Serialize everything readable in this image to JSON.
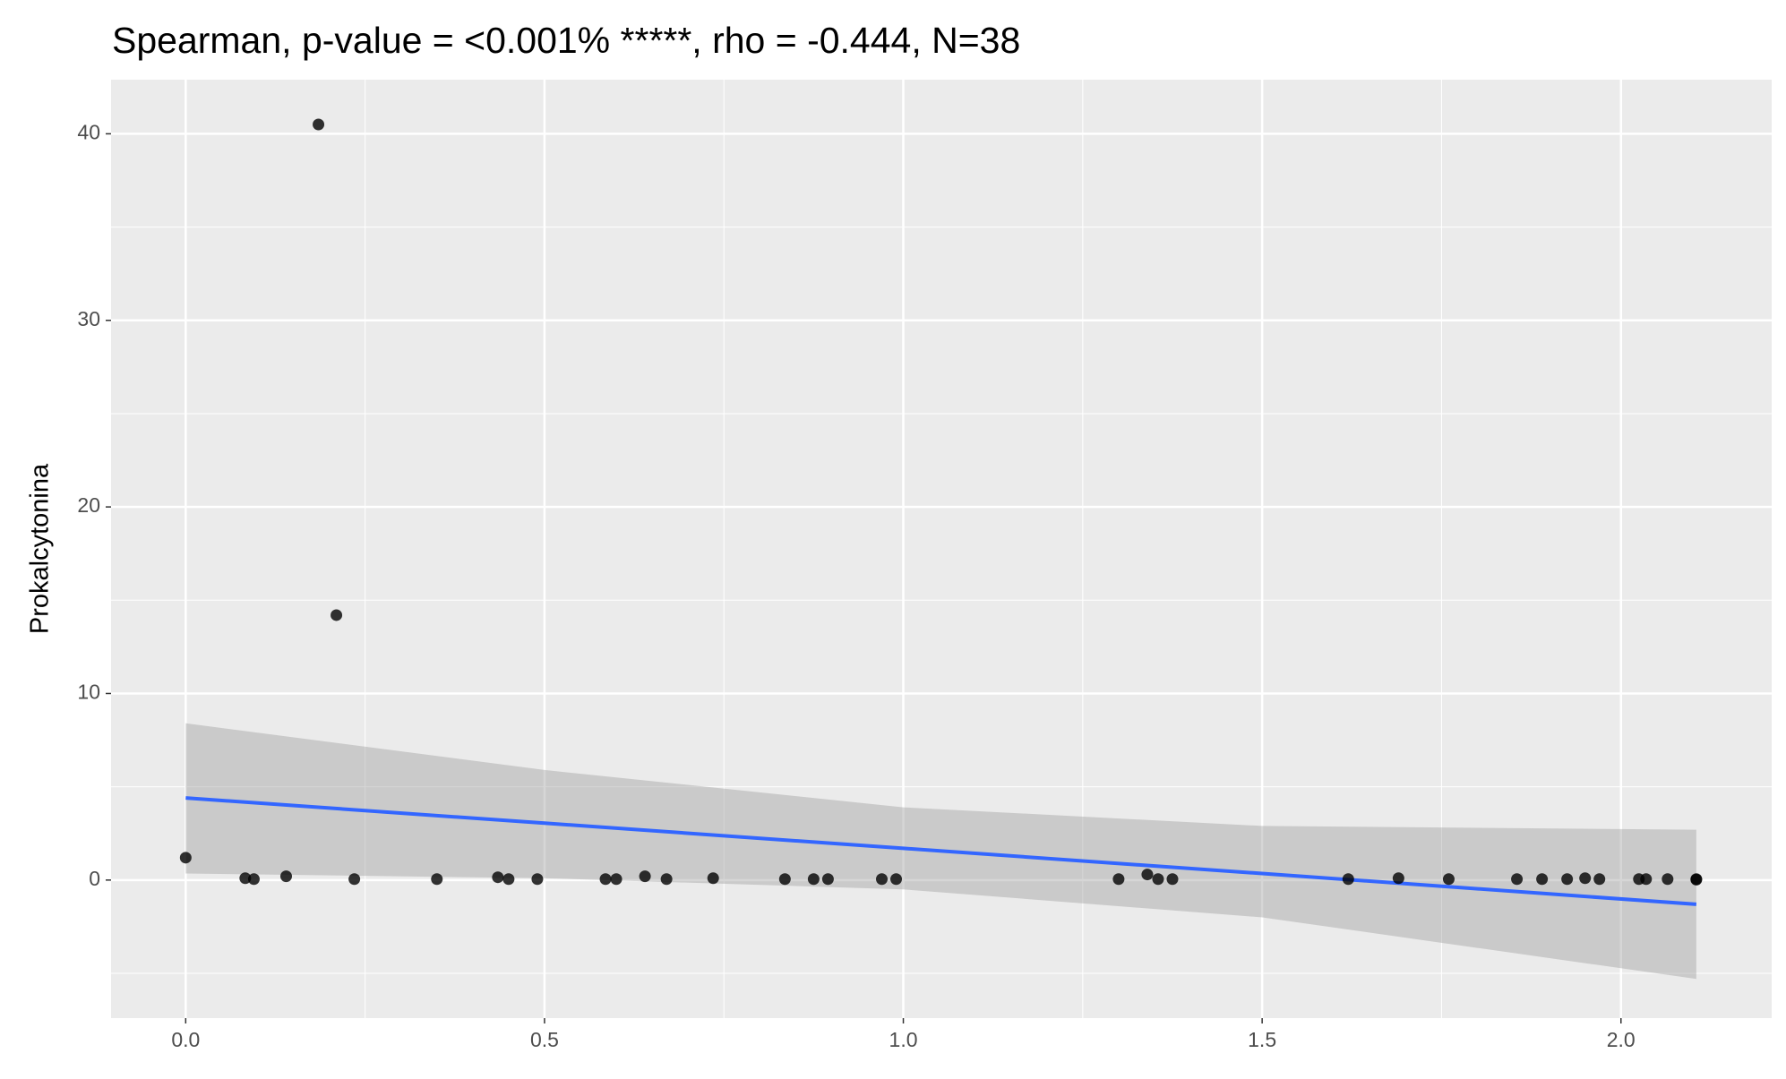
{
  "chart_data": {
    "type": "scatter",
    "title": "Spearman, p-value = <0.001% *****, rho = -0.444, N=38",
    "y_label": "Prokalcytonina",
    "x": [
      0.0,
      0.083,
      0.095,
      0.14,
      0.185,
      0.21,
      0.235,
      0.35,
      0.435,
      0.45,
      0.49,
      0.585,
      0.6,
      0.64,
      0.67,
      0.735,
      0.835,
      0.875,
      0.895,
      0.97,
      0.99,
      1.3,
      1.34,
      1.355,
      1.375,
      1.62,
      1.69,
      1.76,
      1.855,
      1.89,
      1.925,
      1.95,
      1.97,
      2.025,
      2.035,
      2.065,
      2.105,
      2.105
    ],
    "values": [
      1.2,
      0.1,
      0.05,
      0.2,
      40.5,
      14.2,
      0.05,
      0.05,
      0.15,
      0.05,
      0.05,
      0.05,
      0.05,
      0.2,
      0.05,
      0.1,
      0.05,
      0.05,
      0.05,
      0.05,
      0.05,
      0.05,
      0.3,
      0.05,
      0.05,
      0.05,
      0.1,
      0.05,
      0.05,
      0.05,
      0.05,
      0.1,
      0.05,
      0.05,
      0.05,
      0.05,
      0.05,
      0.02
    ],
    "color": "#000000",
    "fit": {
      "x": [
        0.0,
        0.5,
        1.0,
        1.5,
        2.105
      ],
      "y": [
        4.4,
        3.05,
        1.7,
        0.35,
        -1.3
      ],
      "lower": [
        0.35,
        0.1,
        -0.5,
        -2.0,
        -5.3
      ],
      "upper": [
        8.4,
        5.9,
        3.9,
        2.9,
        2.7
      ],
      "color": "#3366ff",
      "band_color": "#999999"
    },
    "xlim": [
      -0.104,
      2.21
    ],
    "ylim": [
      -7.4,
      42.9
    ],
    "xticks": [
      {
        "value": 0,
        "label": "0.0"
      },
      {
        "value": 0.5,
        "label": "0.5"
      },
      {
        "value": 1,
        "label": "1.0"
      },
      {
        "value": 1.5,
        "label": "1.5"
      },
      {
        "value": 2,
        "label": "2.0"
      }
    ],
    "yticks": [
      0,
      10,
      20,
      30,
      40
    ],
    "x_minor_ticks": [
      0.25,
      0.75,
      1.25,
      1.75
    ],
    "y_minor_ticks": [
      -5,
      5,
      15,
      25,
      35
    ],
    "grid": true
  }
}
